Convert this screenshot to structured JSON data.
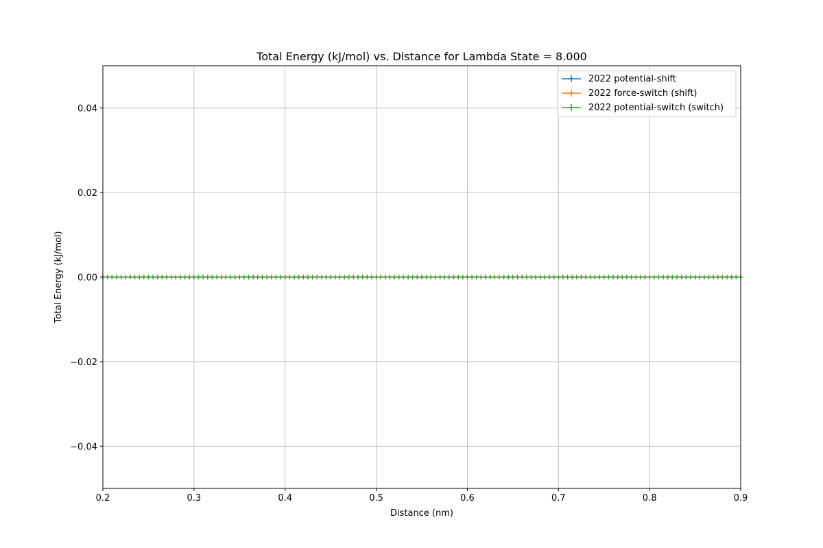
{
  "chart_data": {
    "type": "line",
    "title": "Total Energy (kJ/mol) vs. Distance for Lambda State = 8.000",
    "xlabel": "Distance (nm)",
    "ylabel": "Total Energy (kJ/mol)",
    "xlim": [
      0.2,
      0.9
    ],
    "ylim": [
      -0.05,
      0.05
    ],
    "xticks": [
      0.2,
      0.3,
      0.4,
      0.5,
      0.6,
      0.7,
      0.8,
      0.9
    ],
    "xtick_labels": [
      "0.2",
      "0.3",
      "0.4",
      "0.5",
      "0.6",
      "0.7",
      "0.8",
      "0.9"
    ],
    "yticks": [
      -0.04,
      -0.02,
      0.0,
      0.02,
      0.04
    ],
    "ytick_labels": [
      "−0.04",
      "−0.02",
      "0.00",
      "0.02",
      "0.04"
    ],
    "grid": true,
    "legend_position": "top-right",
    "x_start": 0.2,
    "x_end": 0.9,
    "x_step": 0.005,
    "series": [
      {
        "name": "2022 potential-shift",
        "color": "#1f77b4",
        "marker": "plus",
        "constant_value": 0.0
      },
      {
        "name": "2022 force-switch (shift)",
        "color": "#ff7f0e",
        "marker": "plus",
        "constant_value": 0.0
      },
      {
        "name": "2022 potential-switch (switch)",
        "color": "#2ca02c",
        "marker": "plus",
        "constant_value": 0.0
      }
    ]
  }
}
